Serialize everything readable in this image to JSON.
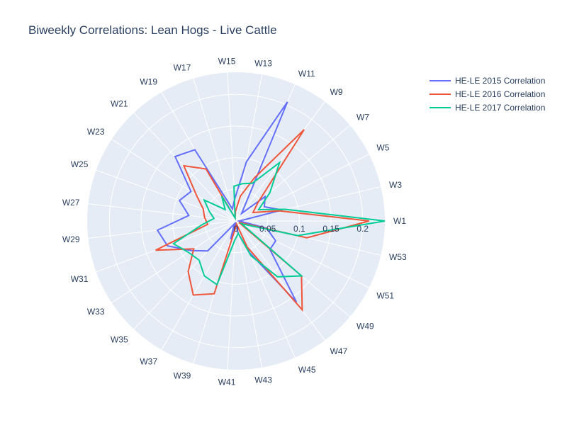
{
  "chart_data": {
    "type": "polar-line",
    "title": "Biweekly Correlations: Lean Hogs - Live Cattle",
    "theta_categories": [
      "W1",
      "W3",
      "W5",
      "W7",
      "W9",
      "W11",
      "W13",
      "W15",
      "W17",
      "W19",
      "W21",
      "W23",
      "W25",
      "W27",
      "W29",
      "W31",
      "W33",
      "W35",
      "W37",
      "W39",
      "W41",
      "W43",
      "W45",
      "W47",
      "W49",
      "W51",
      "W53"
    ],
    "radial_ticks": [
      "0",
      "0.05",
      "0.1",
      "0.15",
      "0.2"
    ],
    "radial_range": [
      0,
      0.235
    ],
    "grid": true,
    "legend_position": "top-right",
    "series": [
      {
        "name": "HE-LE 2015 Correlation",
        "color": "#636efa",
        "values": [
          0.005,
          0.075,
          0.05,
          0.06,
          0.015,
          0.205,
          0.095,
          0.035,
          0.02,
          0.13,
          0.14,
          0.085,
          0.095,
          0.075,
          0.125,
          0.115,
          0.085,
          0.065,
          0.005,
          0.03,
          0.005,
          0.02,
          0.055,
          0.16,
          0.07,
          0.07,
          0.05
        ]
      },
      {
        "name": "HE-LE 2016 Correlation",
        "color": "#ef553b",
        "values": [
          0.21,
          0.07,
          0.03,
          0.045,
          0.18,
          0.075,
          0.04,
          0.015,
          0.005,
          0.095,
          0.12,
          0.075,
          0.055,
          0.05,
          0.045,
          0.135,
          0.08,
          0.11,
          0.135,
          0.12,
          0.01,
          0.005,
          0.045,
          0.175,
          0.135,
          0.005,
          0.115
        ]
      },
      {
        "name": "HE-LE 2017 Correlation",
        "color": "#00cc96",
        "values": [
          0.235,
          0.08,
          0.04,
          0.07,
          0.115,
          0.065,
          0.06,
          0.055,
          0.005,
          0.045,
          0.025,
          0.06,
          0.045,
          0.035,
          0.055,
          0.105,
          0.09,
          0.085,
          0.1,
          0.105,
          0.03,
          0.02,
          0.06,
          0.11,
          0.135,
          0.01,
          0.1
        ]
      }
    ]
  }
}
